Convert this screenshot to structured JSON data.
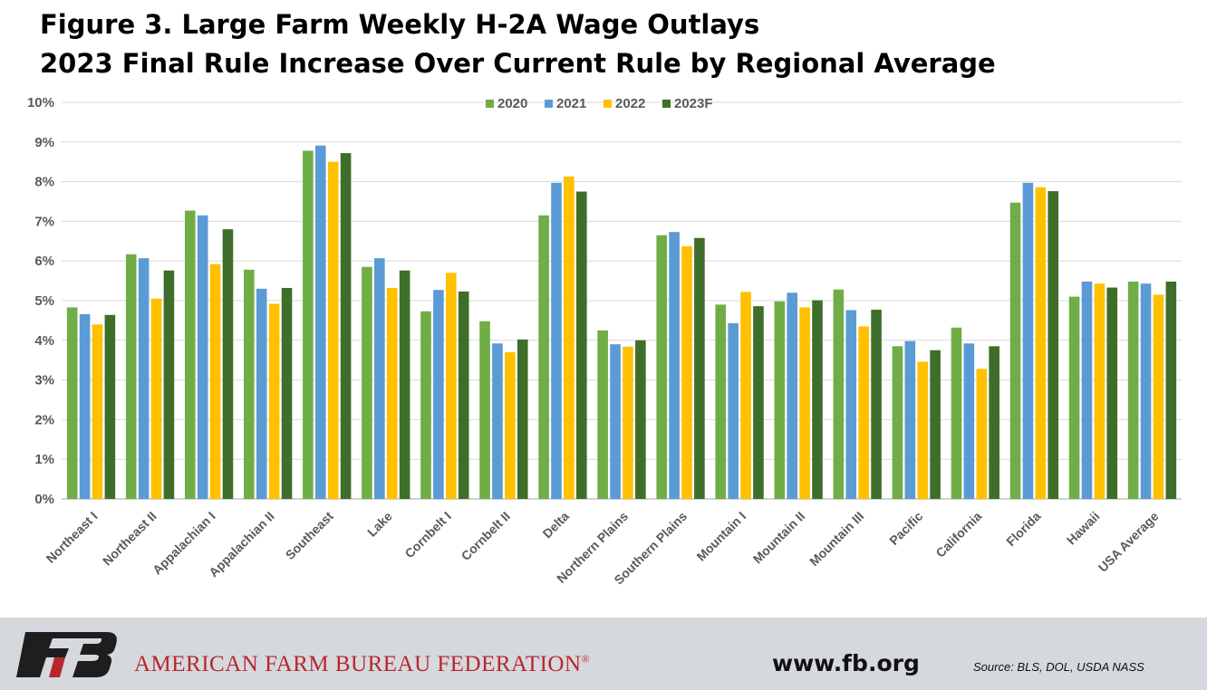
{
  "title_line1": "Figure 3. Large Farm Weekly H-2A Wage Outlays",
  "title_line2": "2023 Final Rule Increase Over Current Rule by Regional Average",
  "chart_data": {
    "type": "bar",
    "categories": [
      "Northeast I",
      "Northeast II",
      "Appalachian I",
      "Appalachian II",
      "Southeast",
      "Lake",
      "Cornbelt I",
      "Cornbelt II",
      "Delta",
      "Northern Plains",
      "Southern Plains",
      "Mountain I",
      "Mountain II",
      "Mountain III",
      "Pacific",
      "California",
      "Florida",
      "Hawaii",
      "USA Average"
    ],
    "series": [
      {
        "name": "2020",
        "color": "#70ad47",
        "values": [
          4.83,
          6.17,
          7.27,
          5.78,
          8.78,
          5.85,
          4.73,
          4.48,
          7.15,
          4.25,
          6.65,
          4.9,
          4.98,
          5.28,
          3.85,
          4.32,
          7.47,
          5.1,
          5.48
        ]
      },
      {
        "name": "2021",
        "color": "#5b9bd5",
        "values": [
          4.66,
          6.07,
          7.15,
          5.3,
          8.91,
          6.07,
          5.27,
          3.92,
          7.97,
          3.9,
          6.73,
          4.43,
          5.2,
          4.76,
          3.98,
          3.92,
          7.97,
          5.48,
          5.43
        ]
      },
      {
        "name": "2022",
        "color": "#ffc000",
        "values": [
          4.4,
          5.05,
          5.92,
          4.92,
          8.5,
          5.32,
          5.7,
          3.7,
          8.13,
          3.84,
          6.37,
          5.22,
          4.83,
          4.35,
          3.46,
          3.28,
          7.86,
          5.43,
          5.15
        ]
      },
      {
        "name": "2023F",
        "color": "#3f6e2a",
        "values": [
          4.64,
          5.76,
          6.8,
          5.32,
          8.72,
          5.76,
          5.23,
          4.02,
          7.75,
          4.0,
          6.58,
          4.86,
          5.01,
          4.77,
          3.75,
          3.85,
          7.76,
          5.33,
          5.48
        ]
      }
    ],
    "yticks": [
      "0%",
      "1%",
      "2%",
      "3%",
      "4%",
      "5%",
      "6%",
      "7%",
      "8%",
      "9%",
      "10%"
    ],
    "ylim": [
      0,
      10
    ],
    "grid": true,
    "legend_position": "top-center"
  },
  "footer": {
    "org_name": "AMERICAN FARM BUREAU FEDERATION",
    "registered_mark": "®",
    "website": "www.fb.org",
    "source": "Source: BLS, DOL, USDA NASS"
  },
  "colors": {
    "footer_bg": "#d5d8dc",
    "org_red": "#b8262f"
  }
}
